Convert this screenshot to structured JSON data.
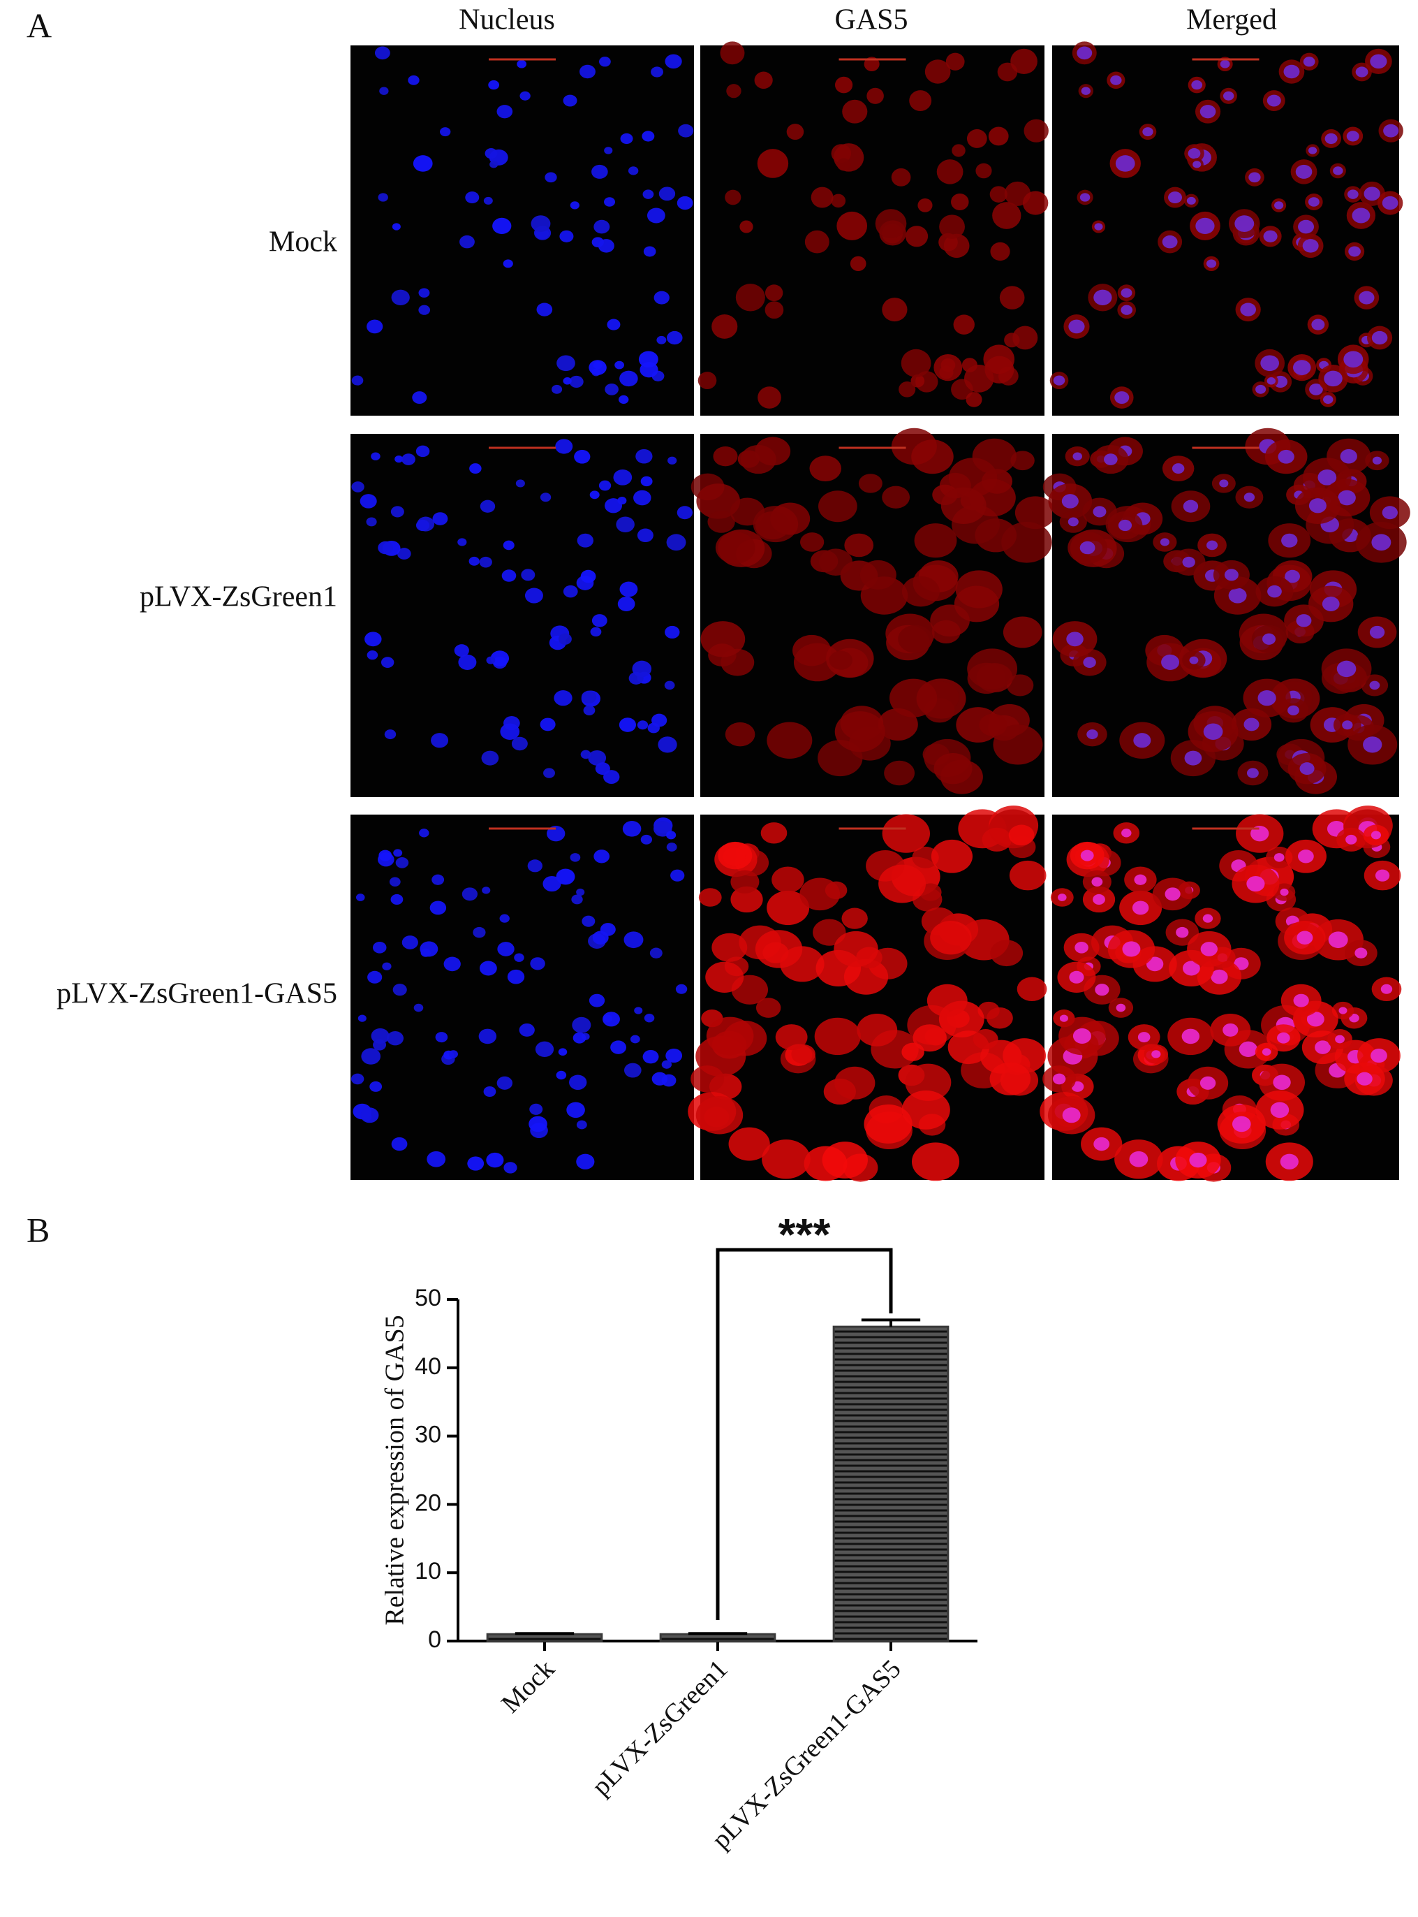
{
  "panel_a": {
    "label": "A",
    "columns": [
      "Nucleus",
      "GAS5",
      "Merged"
    ],
    "rows": [
      "Mock",
      "pLVX-ZsGreen1",
      "pLVX-ZsGreen1-GAS5"
    ]
  },
  "panel_b": {
    "label": "B"
  },
  "chart_data": {
    "type": "bar",
    "ylabel": "Relative expression of GAS5",
    "categories": [
      "Mock",
      "pLVX-ZsGreen1",
      "pLVX-ZsGreen1-GAS5"
    ],
    "values": [
      1,
      1,
      46
    ],
    "errors": [
      0.1,
      0.1,
      1
    ],
    "color": "#3a3a3a",
    "ylim": [
      0,
      50
    ],
    "yticks": [
      0,
      10,
      20,
      30,
      40,
      50
    ],
    "annotations": [
      {
        "text": "***"
      }
    ]
  }
}
